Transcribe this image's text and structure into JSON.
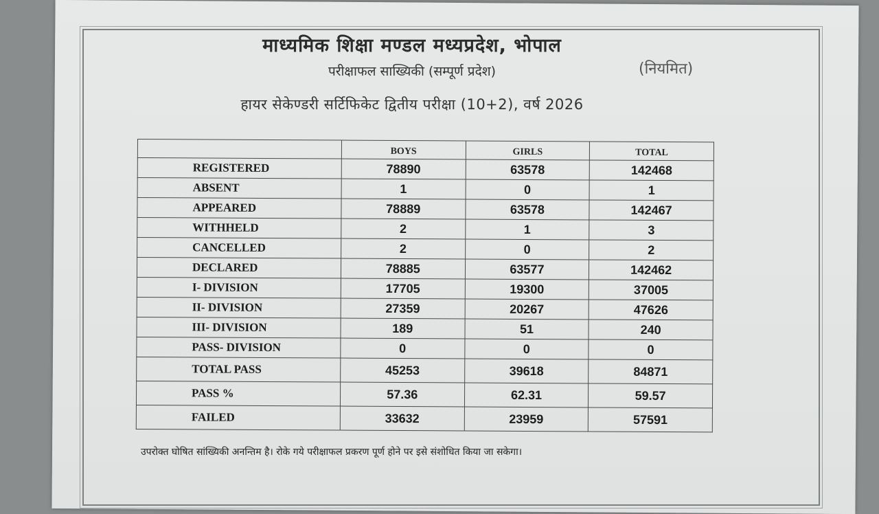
{
  "header": {
    "title": "माध्यमिक शिक्षा मण्डल मध्यप्रदेश, भोपाल",
    "subtitle": "परीक्षाफल साख्यिकी (सम्पूर्ण प्रदेश)",
    "tag": "(नियमित)",
    "exam": "हायर सेकेण्डरी सर्टिफिकेट द्वितीय परीक्षा (10+2), वर्ष 2026"
  },
  "table": {
    "columns": [
      "",
      "BOYS",
      "GIRLS",
      "TOTAL"
    ],
    "rows": [
      {
        "label": "REGISTERED",
        "boys": "78890",
        "girls": "63578",
        "total": "142468"
      },
      {
        "label": "ABSENT",
        "boys": "1",
        "girls": "0",
        "total": "1"
      },
      {
        "label": "APPEARED",
        "boys": "78889",
        "girls": "63578",
        "total": "142467"
      },
      {
        "label": "WITHHELD",
        "boys": "2",
        "girls": "1",
        "total": "3"
      },
      {
        "label": "CANCELLED",
        "boys": "2",
        "girls": "0",
        "total": "2"
      },
      {
        "label": "DECLARED",
        "boys": "78885",
        "girls": "63577",
        "total": "142462"
      },
      {
        "label": "I- DIVISION",
        "boys": "17705",
        "girls": "19300",
        "total": "37005"
      },
      {
        "label": "II- DIVISION",
        "boys": "27359",
        "girls": "20267",
        "total": "47626"
      },
      {
        "label": "III- DIVISION",
        "boys": "189",
        "girls": "51",
        "total": "240"
      },
      {
        "label": "PASS- DIVISION",
        "boys": "0",
        "girls": "0",
        "total": "0"
      },
      {
        "label": "TOTAL PASS",
        "boys": "45253",
        "girls": "39618",
        "total": "84871"
      },
      {
        "label": "PASS %",
        "boys": "57.36",
        "girls": "62.31",
        "total": "59.57"
      },
      {
        "label": "FAILED",
        "boys": "33632",
        "girls": "23959",
        "total": "57591"
      }
    ]
  },
  "footnote": "उपरोक्त घोषित सांख्यिकी अनन्तिम है। रोके गये परीक्षाफल प्रकरण पूर्ण होने पर इसे संशोधित किया जा सकेगा।"
}
